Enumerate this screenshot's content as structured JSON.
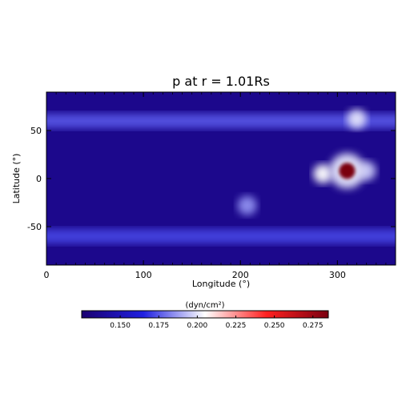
{
  "chart_data": {
    "type": "heatmap",
    "title": "p at r = 1.01Rs",
    "xlabel": "Longitude (°)",
    "ylabel": "Latitude (°)",
    "xlim": [
      0,
      360
    ],
    "ylim": [
      -90,
      90
    ],
    "x_ticks": [
      0,
      100,
      200,
      300
    ],
    "y_ticks": [
      50,
      0,
      -50
    ],
    "colorbar": {
      "label": "(dyn/cm²)",
      "range": [
        0.125,
        0.285
      ],
      "ticks": [
        "0.150",
        "0.175",
        "0.200",
        "0.225",
        "0.250",
        "0.275"
      ],
      "tick_values": [
        0.15,
        0.175,
        0.2,
        0.225,
        0.25,
        0.275
      ],
      "colormap": [
        "#1a0070",
        "#2020e0",
        "#ffffff",
        "#ff2020",
        "#7a0010"
      ]
    },
    "background_value": 0.135,
    "features": [
      {
        "kind": "band",
        "lat": 60,
        "lon_range": [
          0,
          360
        ],
        "value": 0.175,
        "note": "northern high-latitude band"
      },
      {
        "kind": "band",
        "lat": -60,
        "lon_range": [
          0,
          360
        ],
        "value": 0.172,
        "note": "southern high-latitude band"
      },
      {
        "kind": "spot",
        "lat": 8,
        "lon": 310,
        "value": 0.285
      },
      {
        "kind": "spot",
        "lat": 5,
        "lon": 285,
        "value": 0.205
      },
      {
        "kind": "spot",
        "lat": 8,
        "lon": 330,
        "value": 0.195
      },
      {
        "kind": "spot",
        "lat": 62,
        "lon": 320,
        "value": 0.2
      },
      {
        "kind": "spot",
        "lat": -28,
        "lon": 207,
        "value": 0.185
      }
    ]
  }
}
